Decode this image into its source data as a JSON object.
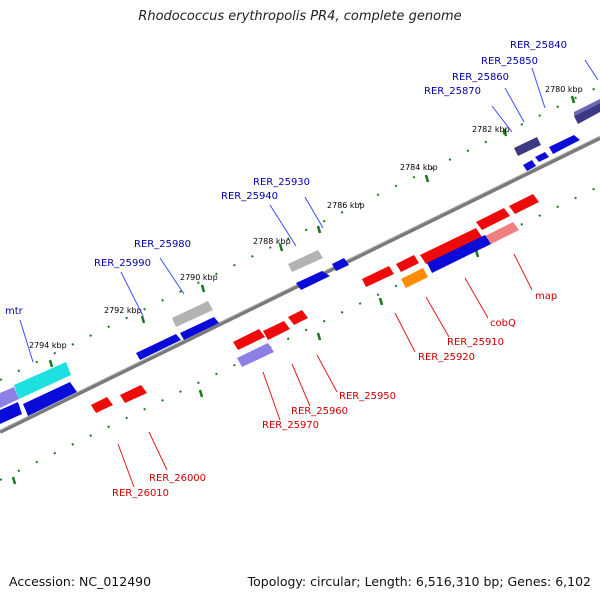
{
  "title": "Rhodococcus erythropolis PR4, complete genome",
  "footer": {
    "accession": "Accession: NC_012490",
    "summary": "Topology: circular; Length: 6,516,310 bp; Genes: 6,102"
  },
  "colors": {
    "backbone": "#7a7a7a",
    "tick": "#1a7a1a",
    "label_forward": "#0000aa",
    "label_reverse": "#cc0000",
    "leader_forward": "#3b4cff",
    "leader_reverse": "#e31a1c",
    "gene_blue": "#0b0bd9",
    "gene_red": "#ee0a0a",
    "gene_gray": "#b3b3b3",
    "gene_cyan": "#1ee0e0",
    "gene_lavender": "#8c80e6",
    "gene_navy": "#3c3a82",
    "gene_orange": "#ff8c00",
    "gene_pink": "#f08080"
  },
  "scale_labels": [
    {
      "text": "2780 kbp"
    },
    {
      "text": "2782 kbp"
    },
    {
      "text": "2784 kbp"
    },
    {
      "text": "2786 kbp"
    },
    {
      "text": "2788 kbp"
    },
    {
      "text": "2790 kbp"
    },
    {
      "text": "2792 kbp"
    },
    {
      "text": "2794 kbp"
    }
  ],
  "gene_labels": [
    {
      "text": "RER_25840",
      "strand": "forward"
    },
    {
      "text": "RER_25850",
      "strand": "forward"
    },
    {
      "text": "RER_25860",
      "strand": "forward"
    },
    {
      "text": "RER_25870",
      "strand": "forward"
    },
    {
      "text": "RER_25930",
      "strand": "forward"
    },
    {
      "text": "RER_25940",
      "strand": "forward"
    },
    {
      "text": "RER_25980",
      "strand": "forward"
    },
    {
      "text": "RER_25990",
      "strand": "forward"
    },
    {
      "text": "mtr",
      "strand": "forward"
    },
    {
      "text": "map",
      "strand": "reverse"
    },
    {
      "text": "cobQ",
      "strand": "reverse"
    },
    {
      "text": "RER_25910",
      "strand": "reverse"
    },
    {
      "text": "RER_25920",
      "strand": "reverse"
    },
    {
      "text": "RER_25950",
      "strand": "reverse"
    },
    {
      "text": "RER_25960",
      "strand": "reverse"
    },
    {
      "text": "RER_25970",
      "strand": "reverse"
    },
    {
      "text": "RER_26000",
      "strand": "reverse"
    },
    {
      "text": "RER_26010",
      "strand": "reverse"
    }
  ]
}
